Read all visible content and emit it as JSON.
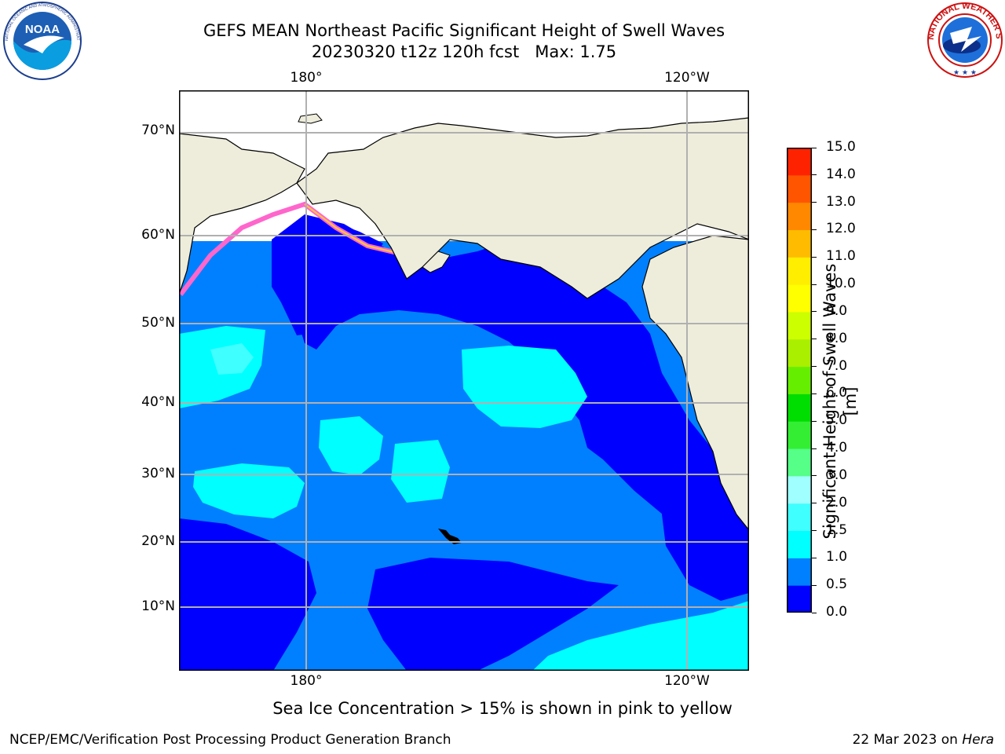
{
  "header": {
    "title_line1": "GEFS MEAN Northeast Pacific Significant Height of Swell Waves",
    "title_line2": "20230320 t12z 120h fcst   Max: 1.75"
  },
  "logos": {
    "noaa_text": "NOAA",
    "noaa_ring_text": "NATIONAL OCEANIC AND ATMOSPHERIC ADMINISTRATION · U.S. DEPARTMENT OF COMMERCE",
    "nws_ring_text": "NATIONAL WEATHER SERVICE"
  },
  "map": {
    "lon_ticks": [
      "180°",
      "120°W"
    ],
    "lat_ticks": [
      "70°N",
      "60°N",
      "50°N",
      "40°N",
      "30°N",
      "20°N",
      "10°N"
    ],
    "gridlines": true,
    "colors": {
      "land": "#eeeddc",
      "ice_free_white": "#ffffff",
      "grid": "#b0b0b0",
      "ice_pink": "#ff66cc",
      "ice_yellow": "#ffcc33"
    }
  },
  "colorbar": {
    "title": "Significant Height of Swell Waves [m]",
    "tick_labels": [
      "0.0",
      "0.5",
      "1.0",
      "1.5",
      "2.0",
      "3.0",
      "4.0",
      "5.0",
      "6.0",
      "7.0",
      "8.0",
      "9.0",
      "10.0",
      "11.0",
      "12.0",
      "13.0",
      "14.0",
      "15.0"
    ],
    "colors": [
      "#0000ff",
      "#0080ff",
      "#00ffff",
      "#40ffff",
      "#a0ffff",
      "#55ff88",
      "#33ee33",
      "#00dd00",
      "#66ee00",
      "#aaee00",
      "#ccff00",
      "#ffff00",
      "#ffee00",
      "#ffbb00",
      "#ff8800",
      "#ff5500",
      "#ff2200",
      "#ff0000"
    ]
  },
  "notes": {
    "sea_ice": "Sea Ice Concentration > 15% is shown in pink to yellow"
  },
  "footer": {
    "left": "NCEP/EMC/Verification Post Processing Product Generation Branch",
    "right_date": "22 Mar 2023 on ",
    "right_machine": "Hera"
  }
}
